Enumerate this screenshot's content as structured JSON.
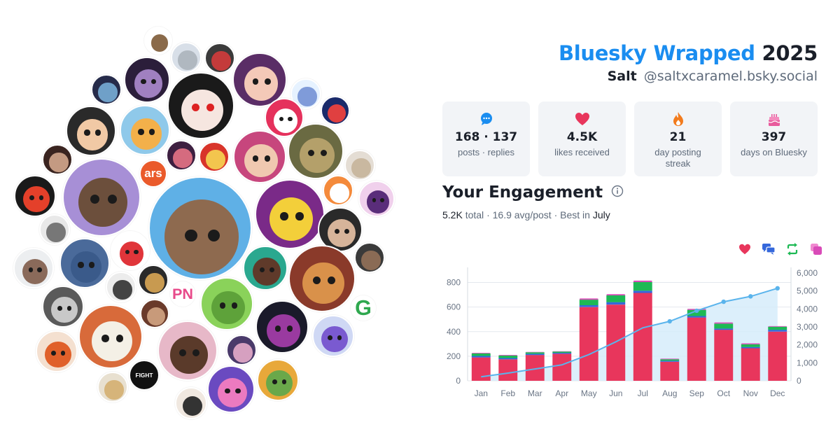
{
  "header": {
    "title": "Bluesky Wrapped",
    "year": "2025",
    "display_name": "Salt",
    "handle": "@saltxcaramel.bsky.social"
  },
  "stats": [
    {
      "icon": "chat-bubble-icon",
      "value": "168 · 137",
      "label": "posts · replies"
    },
    {
      "icon": "heart-icon",
      "value": "4.5K",
      "label": "likes received"
    },
    {
      "icon": "flame-icon",
      "value": "21",
      "label": "day posting streak"
    },
    {
      "icon": "cake-icon",
      "value": "397",
      "label": "days on Bluesky"
    }
  ],
  "engagement": {
    "title": "Your Engagement",
    "total": "5.2K",
    "total_label": "total",
    "avg": "16.9 avg/post",
    "best_label": "Best in",
    "best_month": "July"
  },
  "legend": [
    {
      "icon": "heart-icon",
      "color": "#e8365c"
    },
    {
      "icon": "reply-bubbles-icon",
      "color": "#3568db"
    },
    {
      "icon": "repost-icon",
      "color": "#1db954"
    },
    {
      "icon": "quote-icon",
      "color": "#d94bb8"
    }
  ],
  "avatar_logos": {
    "ars": "ars",
    "pn": "PN",
    "g": "G",
    "fight": "FIGHT"
  },
  "chart_data": {
    "type": "bar",
    "categories": [
      "Jan",
      "Feb",
      "Mar",
      "Apr",
      "May",
      "Jun",
      "Jul",
      "Aug",
      "Sep",
      "Oct",
      "Nov",
      "Dec"
    ],
    "series": [
      {
        "values": [
          190,
          175,
          210,
          220,
          600,
          620,
          715,
          155,
          515,
          415,
          265,
          400
        ]
      },
      {
        "values": [
          12,
          10,
          10,
          8,
          15,
          20,
          18,
          8,
          12,
          10,
          10,
          15
        ]
      },
      {
        "values": [
          20,
          20,
          12,
          10,
          45,
          55,
          70,
          12,
          50,
          40,
          22,
          25
        ]
      },
      {
        "values": [
          5,
          5,
          3,
          3,
          10,
          10,
          12,
          5,
          8,
          10,
          8,
          5
        ]
      }
    ],
    "cumulative": [
      225,
      430,
      660,
      890,
      1460,
      2170,
      2950,
      3310,
      3900,
      4400,
      4700,
      5150
    ],
    "y_left": {
      "ticks": [
        "0",
        "200",
        "400",
        "600",
        "800"
      ],
      "range": [
        0,
        900
      ]
    },
    "y_right": {
      "ticks": [
        "0",
        "1,000",
        "2,000",
        "3,000",
        "4,000",
        "5,000",
        "6,000"
      ],
      "range": [
        0,
        6000
      ]
    },
    "colors": {
      "likes": "#e8365c",
      "replies": "#3568db",
      "reposts": "#1db954",
      "quotes": "#d94bb8",
      "line": "#5ab4ec",
      "area": "#d3ebfa"
    }
  }
}
